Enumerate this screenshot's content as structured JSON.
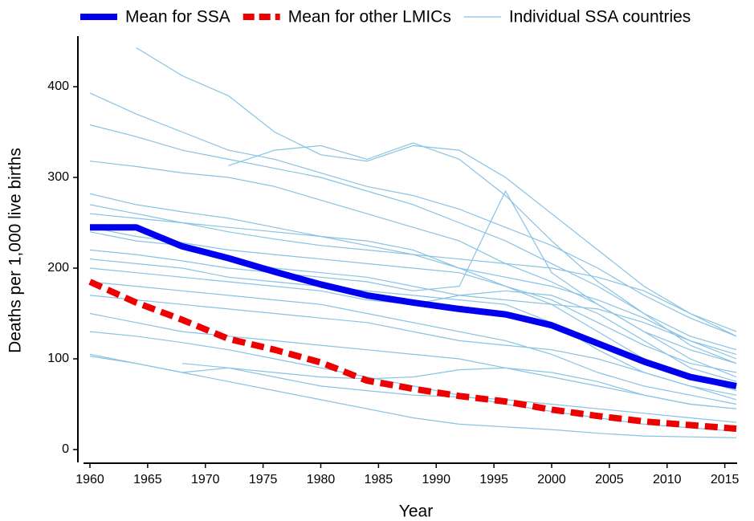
{
  "chart_data": {
    "type": "line",
    "x_label": "Year",
    "y_label": "Deaths per 1,000 live births",
    "x": [
      1960,
      1964,
      1968,
      1972,
      1976,
      1980,
      1984,
      1988,
      1992,
      1996,
      2000,
      2004,
      2008,
      2012,
      2016
    ],
    "xlim": [
      1960,
      2016
    ],
    "xticks": [
      1960,
      1965,
      1970,
      1975,
      1980,
      1985,
      1990,
      1995,
      2000,
      2005,
      2010,
      2015
    ],
    "ylim": [
      -13,
      456
    ],
    "yticks": [
      0,
      100,
      200,
      300,
      400
    ],
    "series": [
      {
        "name": "Mean for SSA",
        "color": "#0000ee",
        "values": [
          245,
          245,
          224,
          211,
          196,
          182,
          170,
          162,
          155,
          149,
          137,
          117,
          97,
          80,
          70
        ]
      },
      {
        "name": "Mean for other LMICs",
        "color": "#ee0000",
        "values": [
          185,
          162,
          143,
          122,
          110,
          96,
          76,
          67,
          59,
          53,
          44,
          37,
          31,
          27,
          23
        ]
      },
      {
        "name": "Individual SSA countries",
        "color": "#88c2e4",
        "lines": [
          [
            393,
            370,
            350,
            330,
            320,
            305,
            290,
            280,
            265,
            245,
            225,
            200,
            170,
            145,
            125
          ],
          [
            null,
            443,
            412,
            390,
            350,
            325,
            318,
            335,
            330,
            300,
            260,
            220,
            180,
            150,
            130
          ],
          [
            358,
            345,
            330,
            320,
            310,
            300,
            285,
            270,
            250,
            230,
            205,
            180,
            150,
            125,
            110
          ],
          [
            318,
            312,
            305,
            300,
            290,
            275,
            260,
            245,
            230,
            205,
            185,
            160,
            130,
            110,
            95
          ],
          [
            282,
            270,
            262,
            255,
            245,
            235,
            225,
            215,
            200,
            180,
            165,
            140,
            115,
            95,
            85
          ],
          [
            270,
            260,
            250,
            245,
            240,
            235,
            230,
            220,
            200,
            190,
            180,
            165,
            145,
            120,
            100
          ],
          [
            245,
            235,
            228,
            220,
            215,
            210,
            205,
            200,
            195,
            180,
            160,
            130,
            100,
            80,
            65
          ],
          [
            220,
            215,
            208,
            200,
            195,
            190,
            185,
            175,
            180,
            285,
            195,
            160,
            130,
            100,
            80
          ],
          [
            210,
            205,
            200,
            190,
            185,
            180,
            175,
            170,
            165,
            160,
            140,
            110,
            85,
            70,
            55
          ],
          [
            200,
            195,
            190,
            185,
            180,
            175,
            165,
            160,
            170,
            175,
            170,
            150,
            120,
            90,
            75
          ],
          [
            185,
            180,
            175,
            170,
            165,
            160,
            150,
            140,
            130,
            120,
            105,
            85,
            70,
            60,
            50
          ],
          [
            170,
            165,
            160,
            155,
            150,
            145,
            140,
            130,
            120,
            115,
            110,
            100,
            85,
            70,
            60
          ],
          [
            150,
            140,
            130,
            125,
            120,
            115,
            110,
            105,
            100,
            90,
            80,
            70,
            60,
            50,
            45
          ],
          [
            103,
            95,
            85,
            90,
            80,
            70,
            65,
            60,
            58,
            55,
            50,
            45,
            40,
            35,
            30
          ],
          [
            null,
            null,
            95,
            90,
            85,
            80,
            78,
            80,
            88,
            90,
            85,
            75,
            60,
            50,
            45
          ],
          [
            130,
            125,
            118,
            110,
            100,
            90,
            80,
            70,
            60,
            50,
            42,
            35,
            28,
            24,
            20
          ],
          [
            105,
            95,
            85,
            75,
            65,
            55,
            45,
            35,
            28,
            25,
            22,
            18,
            15,
            14,
            13
          ],
          [
            260,
            255,
            250,
            240,
            232,
            225,
            220,
            215,
            210,
            205,
            200,
            190,
            175,
            150,
            125
          ],
          [
            null,
            null,
            null,
            313,
            330,
            335,
            320,
            338,
            320,
            280,
            230,
            185,
            150,
            115,
            95
          ],
          [
            240,
            230,
            225,
            210,
            200,
            195,
            190,
            180,
            170,
            165,
            160,
            155,
            140,
            120,
            105
          ]
        ]
      }
    ]
  }
}
